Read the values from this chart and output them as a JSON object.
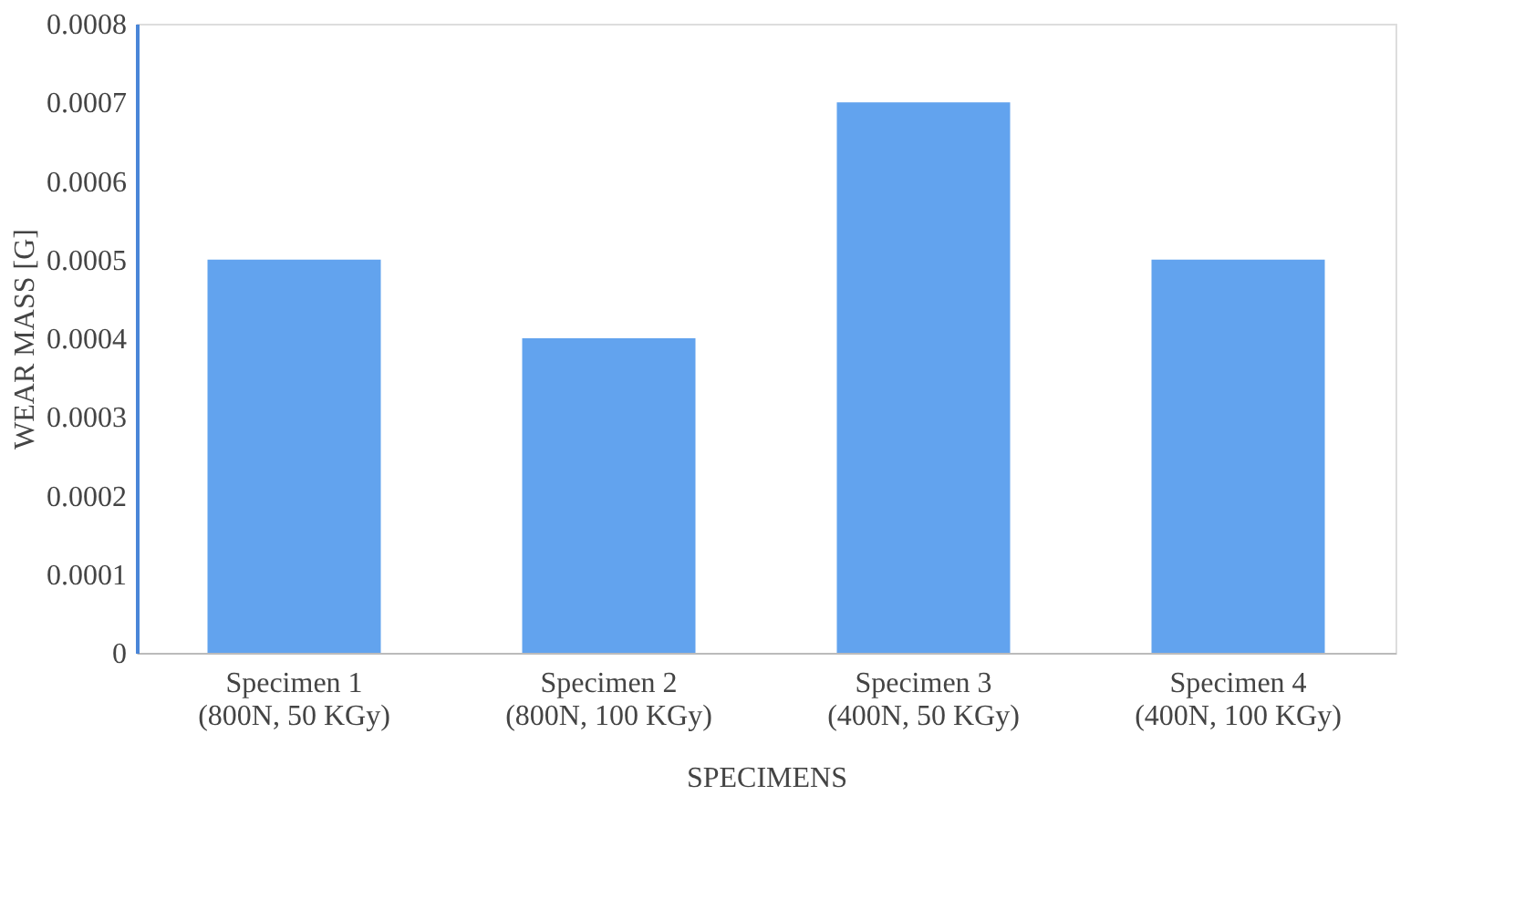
{
  "chart_data": {
    "type": "bar",
    "xlabel": "SPECIMENS",
    "ylabel": "WEAR MASS [G]",
    "categories": [
      "Specimen 1\n(800N, 50 KGy)",
      "Specimen 2\n(800N, 100 KGy)",
      "Specimen 3\n(400N, 50 KGy)",
      "Specimen 4\n(400N, 100 KGy)"
    ],
    "values": [
      0.0005,
      0.0004,
      0.0007,
      0.0005
    ],
    "color": "#62a3ee",
    "ylim": [
      0,
      0.0008
    ],
    "yticks": [
      0,
      0.0001,
      0.0002,
      0.0003,
      0.0004,
      0.0005,
      0.0006,
      0.0007,
      0.0008
    ],
    "grid": false
  }
}
